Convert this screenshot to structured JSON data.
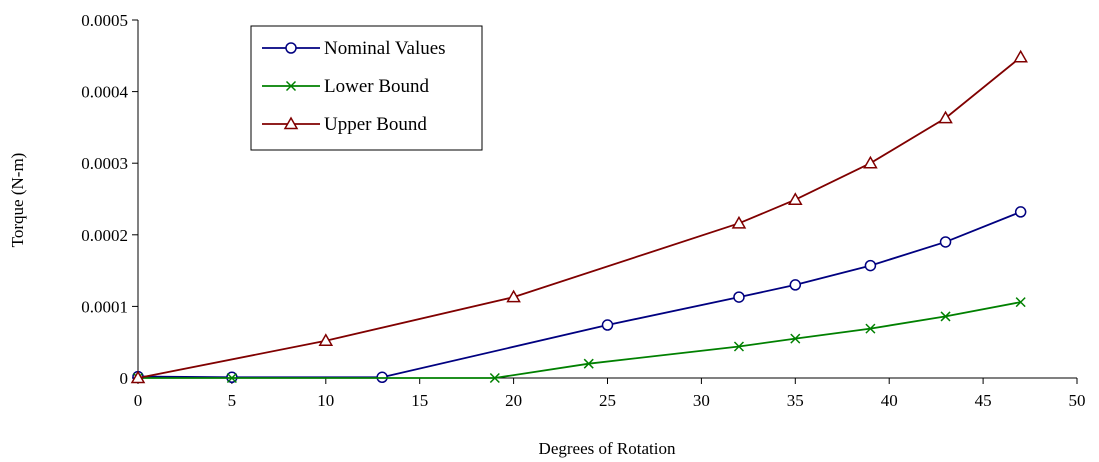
{
  "chart_data": {
    "type": "line",
    "title": "",
    "xlabel": "Degrees of Rotation",
    "ylabel": "Torque (N-m)",
    "xlim": [
      0,
      50
    ],
    "ylim": [
      0,
      0.0005
    ],
    "xticks": [
      "0",
      "5",
      "10",
      "15",
      "20",
      "25",
      "30",
      "35",
      "40",
      "45",
      "50"
    ],
    "yticks": [
      "0",
      "0.0001",
      "0.0002",
      "0.0003",
      "0.0004",
      "0.0005"
    ],
    "grid": false,
    "legend_position": "top-left",
    "series": [
      {
        "name": "Nominal Values",
        "color": "#000080",
        "marker": "circle",
        "x": [
          0,
          5,
          13,
          25,
          32,
          35,
          39,
          43,
          47
        ],
        "y": [
          2e-06,
          1e-06,
          1e-06,
          7.4e-05,
          0.000113,
          0.00013,
          0.000157,
          0.00019,
          0.000232
        ]
      },
      {
        "name": "Lower Bound",
        "color": "#008000",
        "marker": "x",
        "x": [
          0,
          5,
          19,
          24,
          32,
          35,
          39,
          43,
          47
        ],
        "y": [
          0,
          0,
          0,
          2e-05,
          4.4e-05,
          5.5e-05,
          6.9e-05,
          8.6e-05,
          0.000106
        ]
      },
      {
        "name": "Upper Bound",
        "color": "#800000",
        "marker": "triangle",
        "x": [
          0,
          10,
          20,
          32,
          35,
          39,
          43,
          47
        ],
        "y": [
          0,
          5.2e-05,
          0.000113,
          0.000216,
          0.000249,
          0.0003,
          0.000363,
          0.000448
        ]
      }
    ]
  }
}
